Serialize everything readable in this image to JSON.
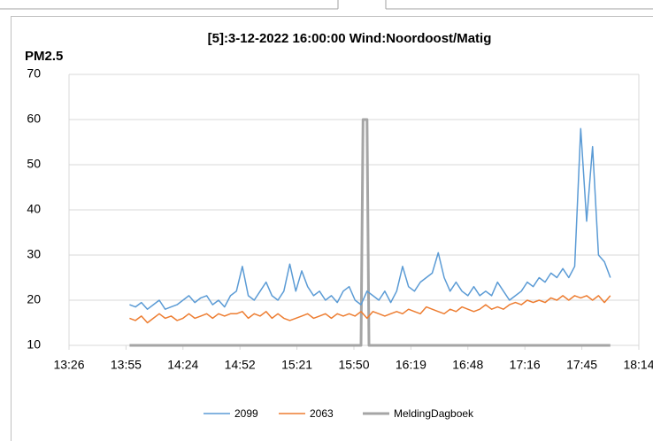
{
  "chart_data": {
    "type": "line",
    "title": "[5]:3-12-2022 16:00:00 Wind:Noordoost/Matig",
    "y_label": "PM2.5",
    "x": [
      837,
      840,
      843,
      846,
      849,
      852,
      855,
      858,
      861,
      864,
      867,
      870,
      873,
      876,
      879,
      882,
      885,
      888,
      891,
      894,
      897,
      900,
      903,
      906,
      909,
      912,
      915,
      918,
      921,
      924,
      927,
      930,
      933,
      936,
      939,
      942,
      945,
      948,
      951,
      954,
      957,
      960,
      963,
      966,
      969,
      972,
      975,
      978,
      981,
      984,
      987,
      990,
      993,
      996,
      999,
      1002,
      1005,
      1008,
      1011,
      1014,
      1017,
      1020,
      1023,
      1026,
      1029,
      1032,
      1035,
      1038,
      1041,
      1044,
      1047,
      1050,
      1053,
      1056,
      1059,
      1062,
      1065,
      1068,
      1071,
      1074,
      1077,
      1080
    ],
    "series": [
      {
        "name": "2099",
        "color": "#5b9bd5",
        "width": 1.5,
        "values": [
          19,
          18.5,
          19.5,
          18,
          19,
          20,
          18,
          18.5,
          19,
          20,
          21,
          19.5,
          20.5,
          21,
          19,
          20,
          18.5,
          21,
          22,
          27.5,
          21,
          20,
          22,
          24,
          21,
          20,
          22,
          28,
          22,
          26.5,
          23,
          21,
          22,
          20,
          21,
          19.5,
          22,
          23,
          20,
          19,
          22,
          21,
          20,
          22,
          19.5,
          22,
          27.5,
          23,
          22,
          24,
          25,
          26,
          30.5,
          25,
          22,
          24,
          22,
          21,
          23,
          21,
          22,
          21,
          24,
          22,
          20,
          21,
          22,
          24,
          23,
          25,
          24,
          26,
          25,
          27,
          25,
          27.5,
          58,
          37.5,
          54,
          30,
          28.5,
          25
        ]
      },
      {
        "name": "2063",
        "color": "#ed7d31",
        "width": 1.5,
        "values": [
          16,
          15.5,
          16.5,
          15,
          16,
          17,
          16,
          16.5,
          15.5,
          16,
          17,
          16,
          16.5,
          17,
          16,
          17,
          16.5,
          17,
          17,
          17.5,
          16,
          17,
          16.5,
          17.5,
          16,
          17,
          16,
          15.5,
          16,
          16.5,
          17,
          16,
          16.5,
          17,
          16,
          17,
          16.5,
          17,
          16.5,
          17.5,
          16,
          17.5,
          17,
          16.5,
          17,
          17.5,
          17,
          18,
          17.5,
          17,
          18.5,
          18,
          17.5,
          17,
          18,
          17.5,
          18.5,
          18,
          17.5,
          18,
          19,
          18,
          18.5,
          18,
          19,
          19.5,
          19,
          20,
          19.5,
          20,
          19.5,
          20.5,
          20,
          21,
          20,
          21,
          20.5,
          21,
          20,
          21,
          19.5,
          21
        ]
      },
      {
        "name": "MeldingDagboek",
        "color": "#a5a5a5",
        "width": 3,
        "x": [
          837,
          954,
          955,
          957,
          958,
          1080
        ],
        "values": [
          10,
          10,
          60,
          60,
          10,
          10
        ]
      }
    ],
    "xlim": [
      806.4,
      1094.4
    ],
    "xticks": [
      {
        "value": 806.4,
        "label": "13:26"
      },
      {
        "value": 835.2,
        "label": "13:55"
      },
      {
        "value": 864,
        "label": "14:24"
      },
      {
        "value": 892.8,
        "label": "14:52"
      },
      {
        "value": 921.6,
        "label": "15:21"
      },
      {
        "value": 950.4,
        "label": "15:50"
      },
      {
        "value": 979.2,
        "label": "16:19"
      },
      {
        "value": 1008,
        "label": "16:48"
      },
      {
        "value": 1036.8,
        "label": "17:16"
      },
      {
        "value": 1065.6,
        "label": "17:45"
      },
      {
        "value": 1094.4,
        "label": "18:14"
      }
    ],
    "ylim": [
      10,
      70
    ],
    "yticks": [
      10,
      20,
      30,
      40,
      50,
      60,
      70
    ],
    "grid": true,
    "legend": "bottom"
  }
}
